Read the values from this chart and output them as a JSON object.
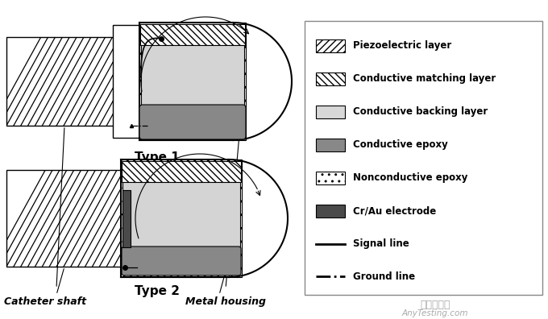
{
  "legend_items": [
    {
      "label": "Piezoelectric layer",
      "type": "hatch",
      "hatch": "////",
      "fc": "white",
      "ec": "black"
    },
    {
      "label": "Conductive matching layer",
      "type": "hatch",
      "hatch": "\\\\\\\\",
      "fc": "white",
      "ec": "black"
    },
    {
      "label": "Conductive backing layer",
      "type": "solid",
      "fc": "#d8d8d8",
      "ec": "black"
    },
    {
      "label": "Conductive epoxy",
      "type": "solid",
      "fc": "#888888",
      "ec": "black"
    },
    {
      "label": "Nonconductive epoxy",
      "type": "dot",
      "fc": "white",
      "ec": "black"
    },
    {
      "label": "Cr/Au electrode",
      "type": "solid",
      "fc": "#4a4a4a",
      "ec": "black"
    },
    {
      "label": "Signal line",
      "type": "line",
      "ls": "-",
      "color": "black"
    },
    {
      "label": "Ground line",
      "type": "line",
      "ls": "-.",
      "color": "black"
    }
  ],
  "watermark1": "嘉峪检测网",
  "watermark2": "AnyTesting.com",
  "type1_label": "Type 1",
  "type2_label": "Type 2",
  "catheter_label": "Catheter shaft",
  "housing_label": "Metal housing",
  "colors": {
    "light_gray": "#d4d4d4",
    "mid_gray": "#888888",
    "dark_gray": "#4a4a4a",
    "white": "#ffffff",
    "black": "#000000"
  }
}
